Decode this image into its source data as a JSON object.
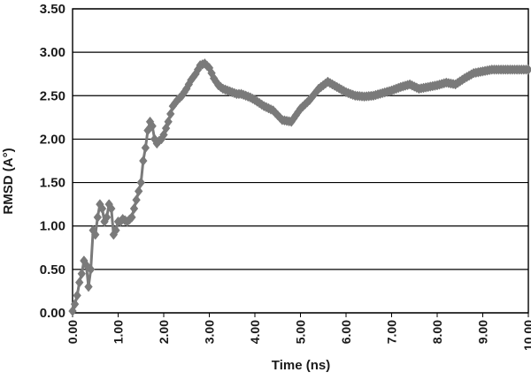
{
  "chart_data": {
    "type": "line",
    "xlabel": "Time (ns)",
    "ylabel": "RMSD (A°)",
    "xlim": [
      0,
      10
    ],
    "ylim": [
      0,
      3.5
    ],
    "x_ticks": [
      "0.00",
      "1.00",
      "2.00",
      "3.00",
      "4.00",
      "5.00",
      "6.00",
      "7.00",
      "8.00",
      "9.00",
      "10.00"
    ],
    "y_ticks": [
      "0.00",
      "0.50",
      "1.00",
      "1.50",
      "2.00",
      "2.50",
      "3.00",
      "3.50"
    ],
    "grid": "horizontal",
    "marker": "diamond",
    "series_color": "#7a7a7a",
    "series": [
      {
        "x": [
          0.0,
          0.05,
          0.1,
          0.15,
          0.2,
          0.25,
          0.3,
          0.35,
          0.4,
          0.45,
          0.5,
          0.55,
          0.6,
          0.65,
          0.7,
          0.75,
          0.8,
          0.85,
          0.9,
          0.95,
          1.0,
          1.05,
          1.1,
          1.2,
          1.3,
          1.4,
          1.5,
          1.55,
          1.6,
          1.65,
          1.7,
          1.75,
          1.8,
          1.85,
          1.9,
          1.95,
          2.0,
          2.1,
          2.2,
          2.3,
          2.4,
          2.5,
          2.6,
          2.7,
          2.8,
          2.9,
          3.0,
          3.1,
          3.2,
          3.3,
          3.4,
          3.5,
          3.6,
          3.7,
          3.8,
          3.9,
          4.0,
          4.2,
          4.4,
          4.6,
          4.8,
          5.0,
          5.2,
          5.4,
          5.6,
          5.8,
          6.0,
          6.2,
          6.4,
          6.6,
          6.8,
          7.0,
          7.2,
          7.4,
          7.6,
          7.8,
          8.0,
          8.2,
          8.4,
          8.6,
          8.8,
          9.0,
          9.2,
          9.4,
          9.6,
          9.8,
          10.0
        ],
        "y": [
          0.02,
          0.1,
          0.2,
          0.35,
          0.45,
          0.6,
          0.55,
          0.3,
          0.5,
          0.95,
          0.9,
          1.1,
          1.25,
          1.2,
          1.05,
          1.1,
          1.25,
          1.2,
          0.9,
          0.95,
          1.05,
          1.05,
          1.08,
          1.05,
          1.1,
          1.3,
          1.5,
          1.75,
          1.9,
          2.1,
          2.2,
          2.15,
          2.0,
          1.95,
          1.98,
          2.0,
          2.05,
          2.2,
          2.38,
          2.45,
          2.5,
          2.58,
          2.68,
          2.75,
          2.85,
          2.87,
          2.82,
          2.7,
          2.62,
          2.58,
          2.56,
          2.54,
          2.52,
          2.52,
          2.5,
          2.48,
          2.45,
          2.38,
          2.33,
          2.22,
          2.2,
          2.35,
          2.45,
          2.58,
          2.66,
          2.6,
          2.54,
          2.5,
          2.49,
          2.5,
          2.53,
          2.56,
          2.6,
          2.63,
          2.58,
          2.6,
          2.62,
          2.65,
          2.63,
          2.7,
          2.76,
          2.78,
          2.8,
          2.8,
          2.8,
          2.8,
          2.8
        ]
      }
    ]
  }
}
